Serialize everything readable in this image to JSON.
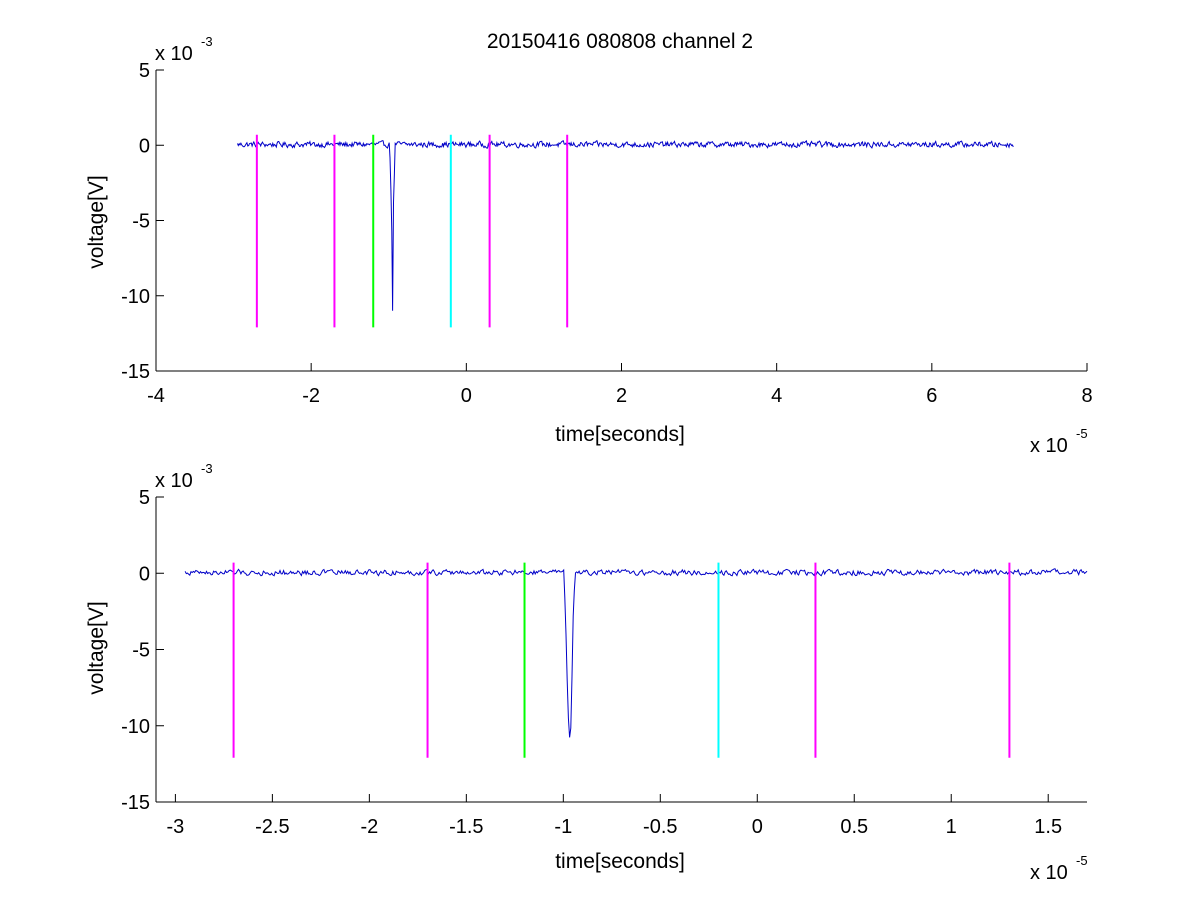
{
  "window": {
    "title": "20150416 080808 channel 2"
  },
  "colors": {
    "signal": "#0000c8",
    "magenta_marker": "#ff00ff",
    "green_marker": "#00ff00",
    "cyan_marker": "#00ffff",
    "axis": "#000000",
    "background": "#ffffff"
  },
  "chart_data": [
    {
      "type": "line",
      "title": "20150416 080808 channel 2",
      "xlabel": "time[seconds]",
      "ylabel": "voltage[V]",
      "x_multiplier": {
        "base": "x 10",
        "exponent": "-5"
      },
      "y_multiplier": {
        "base": "x 10",
        "exponent": "-3"
      },
      "xlim": [
        -4,
        8
      ],
      "ylim": [
        -15,
        5
      ],
      "x_ticks": [
        -4,
        -2,
        0,
        2,
        4,
        6,
        8
      ],
      "x_tick_labels": [
        "-4",
        "-2",
        "0",
        "2",
        "4",
        "6",
        "8"
      ],
      "y_ticks": [
        5,
        0,
        -5,
        -10,
        -15
      ],
      "y_tick_labels": [
        "5",
        "0",
        "-5",
        "-10",
        "-15"
      ],
      "grid": false,
      "series": [
        {
          "style": "noisy-baseline",
          "color": "#0000c8",
          "x_range": [
            -2.95,
            7.05
          ],
          "baseline": 0.05,
          "points": [
            {
              "x": -2.95,
              "y": 0.0
            },
            {
              "x": -1.0,
              "y": 0.0
            },
            {
              "x": -0.98,
              "y": -1.0
            },
            {
              "x": -0.96,
              "y": -6.0
            },
            {
              "x": -0.95,
              "y": -11.0
            },
            {
              "x": -0.94,
              "y": -4.0
            },
            {
              "x": -0.92,
              "y": -0.5
            },
            {
              "x": -0.9,
              "y": 0.0
            },
            {
              "x": 7.05,
              "y": 0.0
            }
          ]
        }
      ],
      "markers": [
        {
          "x": -2.7,
          "y_top": 0.7,
          "y_bottom": -12.1,
          "color": "#ff00ff"
        },
        {
          "x": -1.7,
          "y_top": 0.7,
          "y_bottom": -12.1,
          "color": "#ff00ff"
        },
        {
          "x": -1.2,
          "y_top": 0.7,
          "y_bottom": -12.1,
          "color": "#00ff00"
        },
        {
          "x": -0.2,
          "y_top": 0.7,
          "y_bottom": -12.1,
          "color": "#00ffff"
        },
        {
          "x": 0.3,
          "y_top": 0.7,
          "y_bottom": -12.1,
          "color": "#ff00ff"
        },
        {
          "x": 1.3,
          "y_top": 0.7,
          "y_bottom": -12.1,
          "color": "#ff00ff"
        }
      ]
    },
    {
      "type": "line",
      "title": "",
      "xlabel": "time[seconds]",
      "ylabel": "voltage[V]",
      "x_multiplier": {
        "base": "x 10",
        "exponent": "-5"
      },
      "y_multiplier": {
        "base": "x 10",
        "exponent": "-3"
      },
      "xlim": [
        -3.1,
        1.7
      ],
      "ylim": [
        -15,
        5
      ],
      "x_ticks": [
        -3,
        -2.5,
        -2,
        -1.5,
        -1,
        -0.5,
        0,
        0.5,
        1,
        1.5
      ],
      "x_tick_labels": [
        "-3",
        "-2.5",
        "-2",
        "-1.5",
        "-1",
        "-0.5",
        "0",
        "0.5",
        "1",
        "1.5"
      ],
      "y_ticks": [
        5,
        0,
        -5,
        -10,
        -15
      ],
      "y_tick_labels": [
        "5",
        "0",
        "-5",
        "-10",
        "-15"
      ],
      "grid": false,
      "series": [
        {
          "style": "noisy-baseline",
          "color": "#0000c8",
          "x_range": [
            -2.95,
            1.7
          ],
          "baseline": 0.05,
          "points": [
            {
              "x": -2.95,
              "y": 0.3
            },
            {
              "x": -1.0,
              "y": 0.0
            },
            {
              "x": -0.99,
              "y": -2.0
            },
            {
              "x": -0.98,
              "y": -7.0
            },
            {
              "x": -0.97,
              "y": -11.0
            },
            {
              "x": -0.96,
              "y": -10.0
            },
            {
              "x": -0.95,
              "y": -3.0
            },
            {
              "x": -0.94,
              "y": -0.3
            },
            {
              "x": -0.92,
              "y": 0.0
            },
            {
              "x": 1.7,
              "y": 0.0
            }
          ]
        }
      ],
      "markers": [
        {
          "x": -2.7,
          "y_top": 0.7,
          "y_bottom": -12.1,
          "color": "#ff00ff"
        },
        {
          "x": -1.7,
          "y_top": 0.7,
          "y_bottom": -12.1,
          "color": "#ff00ff"
        },
        {
          "x": -1.2,
          "y_top": 0.7,
          "y_bottom": -12.1,
          "color": "#00ff00"
        },
        {
          "x": -0.2,
          "y_top": 0.7,
          "y_bottom": -12.1,
          "color": "#00ffff"
        },
        {
          "x": 0.3,
          "y_top": 0.7,
          "y_bottom": -12.1,
          "color": "#ff00ff"
        },
        {
          "x": 1.3,
          "y_top": 0.7,
          "y_bottom": -12.1,
          "color": "#ff00ff"
        }
      ]
    }
  ]
}
